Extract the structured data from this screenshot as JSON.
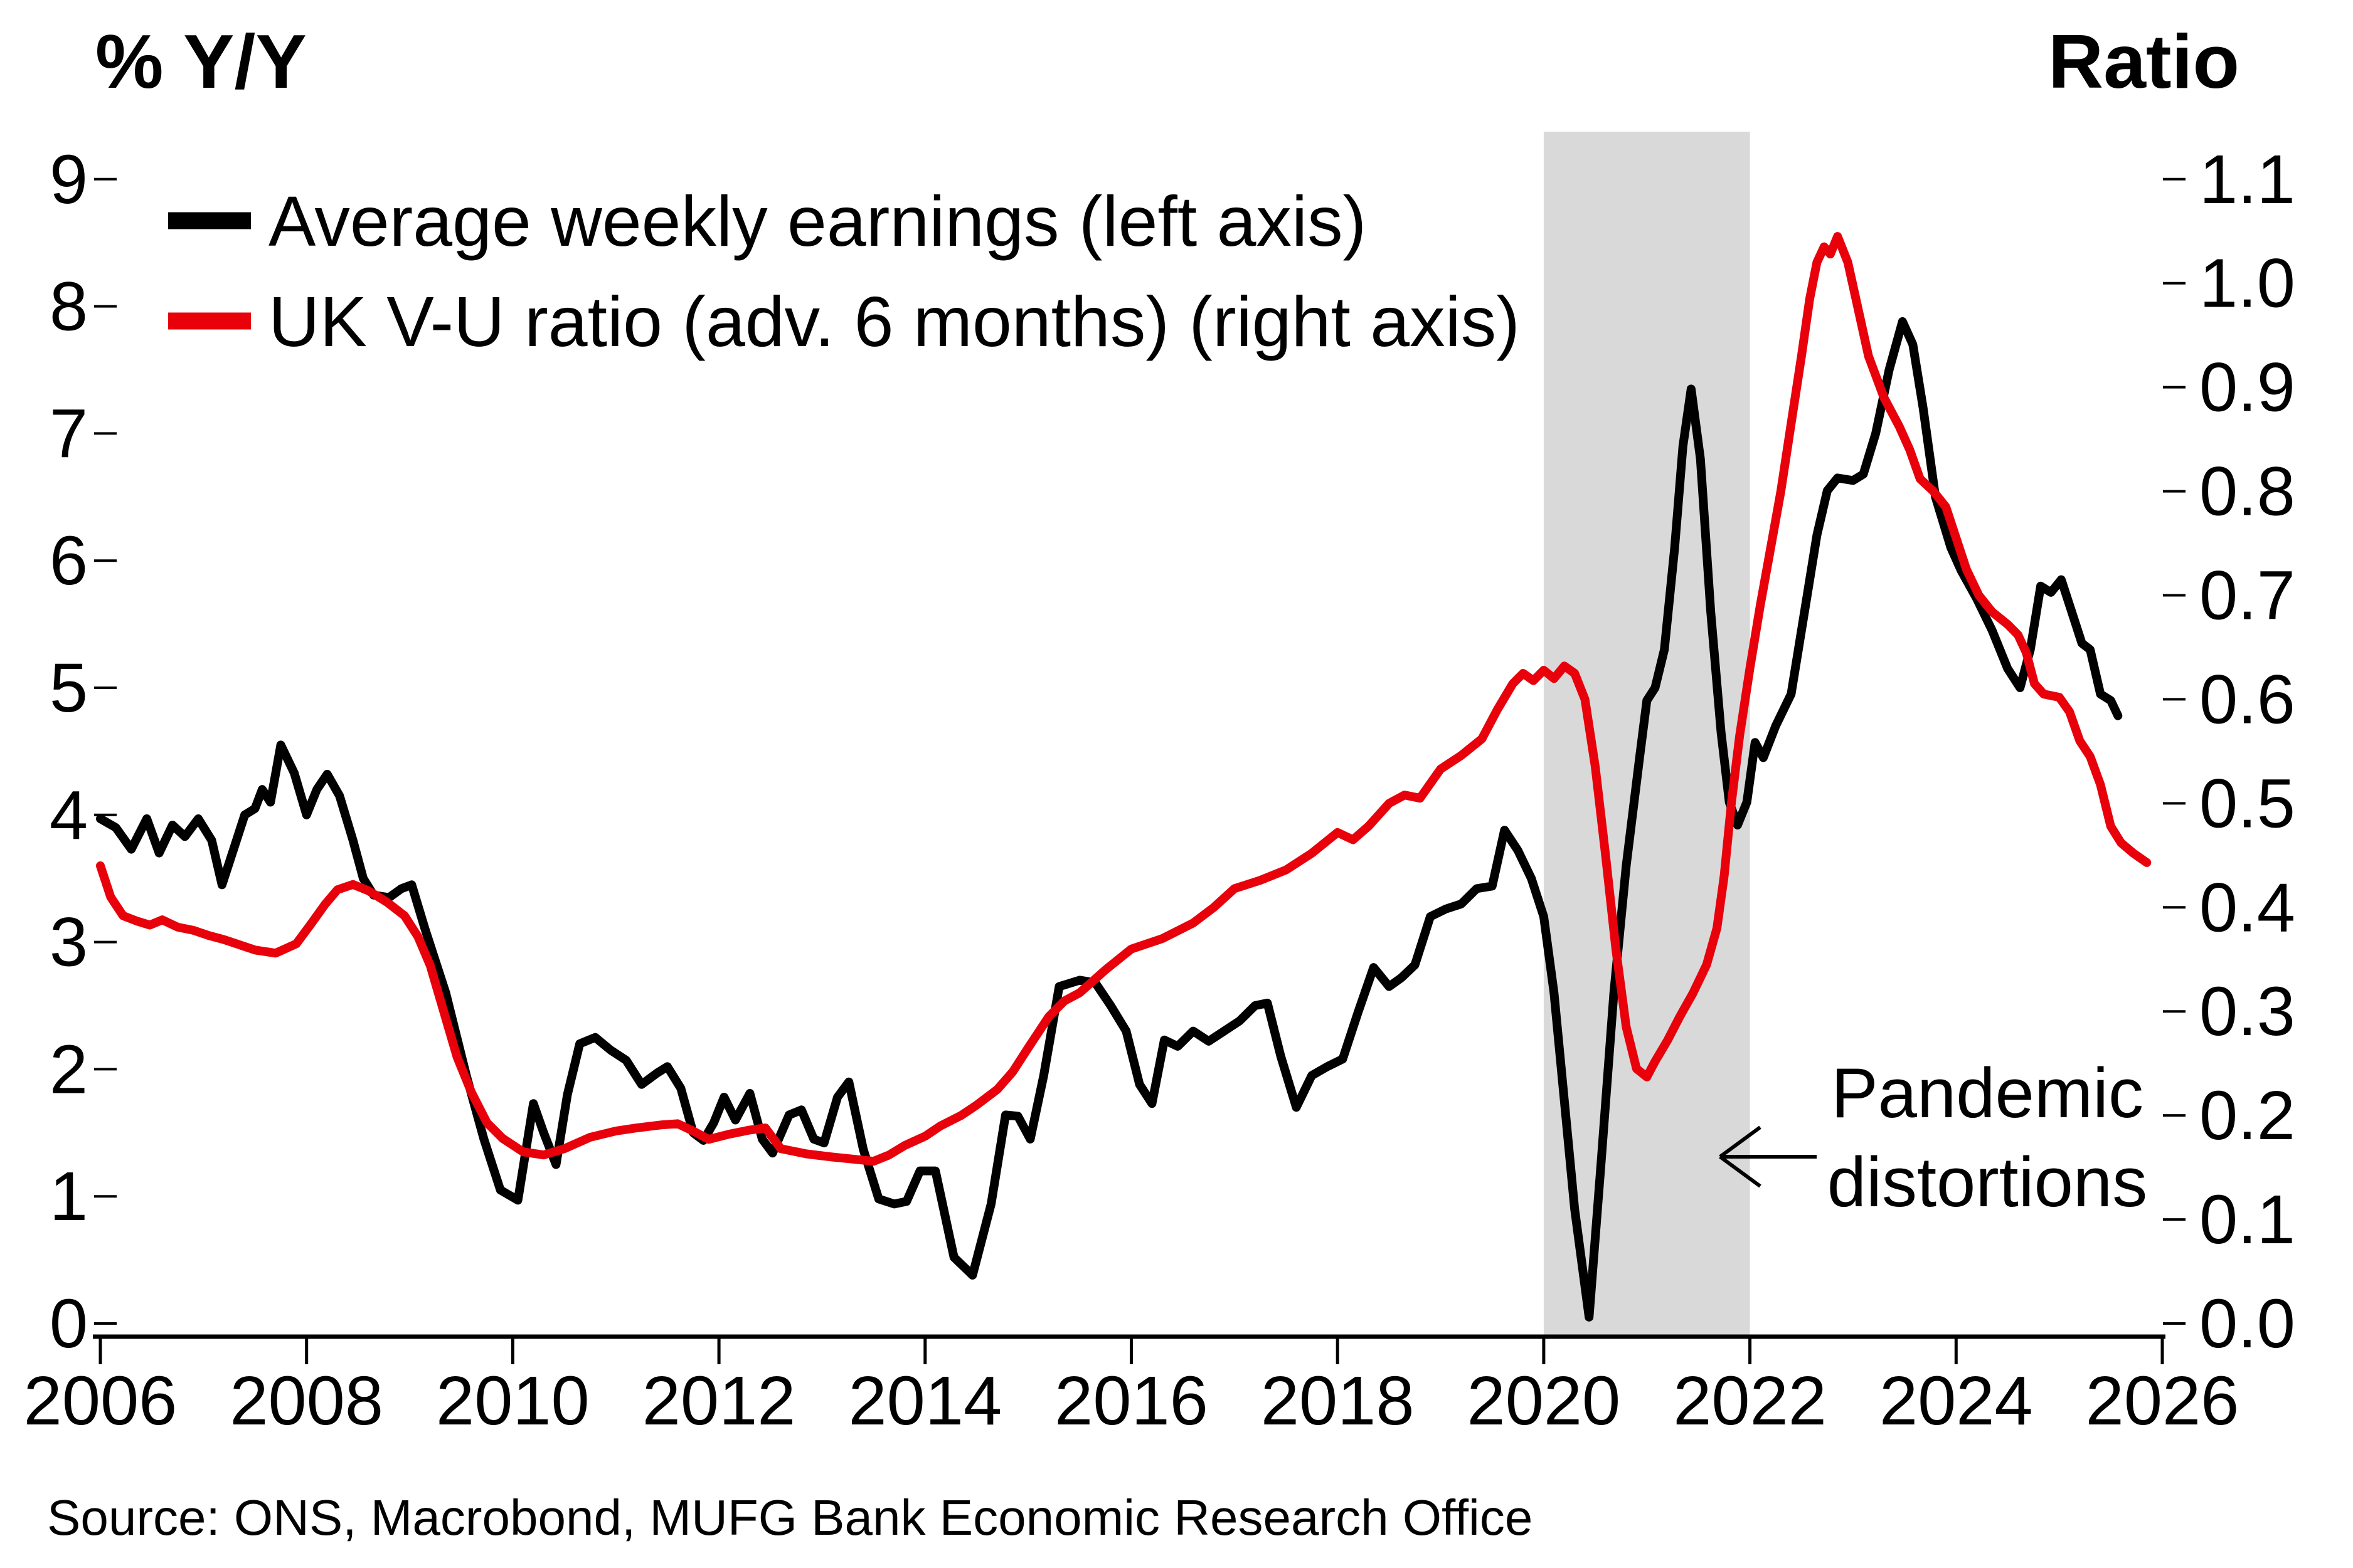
{
  "chart_data": {
    "type": "line",
    "title": "",
    "ylabel_left": "% Y/Y",
    "ylabel_right": "Ratio",
    "source": "Source: ONS, Macrobond, MUFG Bank Economic Research Office",
    "xlim": [
      2005.93,
      2026.05
    ],
    "ylim_left": [
      -0.1,
      9.37
    ],
    "ylim_right": [
      -0.012,
      1.146
    ],
    "grid": false,
    "legend_position": "top-left",
    "xticks": [
      "2006",
      "2008",
      "2010",
      "2012",
      "2014",
      "2016",
      "2018",
      "2020",
      "2022",
      "2024",
      "2026"
    ],
    "yticks_left": [
      "0",
      "1",
      "2",
      "3",
      "4",
      "5",
      "6",
      "7",
      "8",
      "9"
    ],
    "yticks_right": [
      "0.0",
      "0.1",
      "0.2",
      "0.3",
      "0.4",
      "0.5",
      "0.6",
      "0.7",
      "0.8",
      "0.9",
      "1.0",
      "1.1"
    ],
    "shaded_band": {
      "x_start": 2020,
      "x_end": 2022,
      "color": "#d9d9d9"
    },
    "annotation": {
      "line1": "Pandemic",
      "line2": "distortions"
    },
    "series": [
      {
        "name": "Average weekly earnings (left axis)",
        "color": "#000000",
        "axis": "left",
        "data": [
          [
            2006.0,
            3.97
          ],
          [
            2006.15,
            3.9
          ],
          [
            2006.3,
            3.73
          ],
          [
            2006.45,
            3.97
          ],
          [
            2006.57,
            3.7
          ],
          [
            2006.7,
            3.92
          ],
          [
            2006.82,
            3.83
          ],
          [
            2006.95,
            3.97
          ],
          [
            2007.08,
            3.8
          ],
          [
            2007.18,
            3.45
          ],
          [
            2007.3,
            3.75
          ],
          [
            2007.4,
            4.0
          ],
          [
            2007.5,
            4.05
          ],
          [
            2007.57,
            4.2
          ],
          [
            2007.65,
            4.1
          ],
          [
            2007.75,
            4.55
          ],
          [
            2007.88,
            4.33
          ],
          [
            2008.0,
            4.0
          ],
          [
            2008.1,
            4.2
          ],
          [
            2008.2,
            4.32
          ],
          [
            2008.32,
            4.15
          ],
          [
            2008.45,
            3.8
          ],
          [
            2008.55,
            3.5
          ],
          [
            2008.65,
            3.37
          ],
          [
            2008.8,
            3.35
          ],
          [
            2008.92,
            3.42
          ],
          [
            2009.02,
            3.45
          ],
          [
            2009.15,
            3.1
          ],
          [
            2009.35,
            2.6
          ],
          [
            2009.55,
            1.95
          ],
          [
            2009.72,
            1.45
          ],
          [
            2009.88,
            1.05
          ],
          [
            2010.05,
            0.97
          ],
          [
            2010.2,
            1.73
          ],
          [
            2010.3,
            1.5
          ],
          [
            2010.42,
            1.25
          ],
          [
            2010.53,
            1.8
          ],
          [
            2010.65,
            2.2
          ],
          [
            2010.8,
            2.25
          ],
          [
            2010.95,
            2.15
          ],
          [
            2011.1,
            2.07
          ],
          [
            2011.25,
            1.88
          ],
          [
            2011.4,
            1.97
          ],
          [
            2011.5,
            2.02
          ],
          [
            2011.63,
            1.85
          ],
          [
            2011.75,
            1.5
          ],
          [
            2011.85,
            1.44
          ],
          [
            2011.95,
            1.58
          ],
          [
            2012.05,
            1.78
          ],
          [
            2012.16,
            1.6
          ],
          [
            2012.3,
            1.81
          ],
          [
            2012.42,
            1.45
          ],
          [
            2012.52,
            1.34
          ],
          [
            2012.68,
            1.64
          ],
          [
            2012.8,
            1.68
          ],
          [
            2012.92,
            1.45
          ],
          [
            2013.02,
            1.42
          ],
          [
            2013.15,
            1.78
          ],
          [
            2013.26,
            1.9
          ],
          [
            2013.4,
            1.37
          ],
          [
            2013.55,
            0.98
          ],
          [
            2013.7,
            0.94
          ],
          [
            2013.82,
            0.96
          ],
          [
            2013.95,
            1.2
          ],
          [
            2014.1,
            1.2
          ],
          [
            2014.28,
            0.52
          ],
          [
            2014.46,
            0.38
          ],
          [
            2014.64,
            0.94
          ],
          [
            2014.78,
            1.64
          ],
          [
            2014.9,
            1.63
          ],
          [
            2015.02,
            1.45
          ],
          [
            2015.15,
            1.95
          ],
          [
            2015.3,
            2.65
          ],
          [
            2015.5,
            2.7
          ],
          [
            2015.65,
            2.68
          ],
          [
            2015.8,
            2.5
          ],
          [
            2015.95,
            2.3
          ],
          [
            2016.08,
            1.88
          ],
          [
            2016.2,
            1.73
          ],
          [
            2016.32,
            2.23
          ],
          [
            2016.45,
            2.18
          ],
          [
            2016.6,
            2.3
          ],
          [
            2016.75,
            2.22
          ],
          [
            2016.9,
            2.3
          ],
          [
            2017.05,
            2.38
          ],
          [
            2017.2,
            2.5
          ],
          [
            2017.32,
            2.52
          ],
          [
            2017.45,
            2.1
          ],
          [
            2017.6,
            1.7
          ],
          [
            2017.75,
            1.95
          ],
          [
            2017.9,
            2.02
          ],
          [
            2018.05,
            2.08
          ],
          [
            2018.2,
            2.45
          ],
          [
            2018.35,
            2.8
          ],
          [
            2018.5,
            2.65
          ],
          [
            2018.62,
            2.72
          ],
          [
            2018.75,
            2.82
          ],
          [
            2018.9,
            3.2
          ],
          [
            2019.05,
            3.26
          ],
          [
            2019.2,
            3.3
          ],
          [
            2019.35,
            3.42
          ],
          [
            2019.5,
            3.44
          ],
          [
            2019.62,
            3.88
          ],
          [
            2019.75,
            3.72
          ],
          [
            2019.88,
            3.5
          ],
          [
            2020.0,
            3.2
          ],
          [
            2020.1,
            2.6
          ],
          [
            2020.2,
            1.75
          ],
          [
            2020.3,
            0.9
          ],
          [
            2020.44,
            0.05
          ],
          [
            2020.56,
            1.3
          ],
          [
            2020.68,
            2.6
          ],
          [
            2020.8,
            3.6
          ],
          [
            2020.93,
            4.45
          ],
          [
            2021.0,
            4.9
          ],
          [
            2021.08,
            5.0
          ],
          [
            2021.17,
            5.3
          ],
          [
            2021.27,
            6.1
          ],
          [
            2021.35,
            6.9
          ],
          [
            2021.43,
            7.35
          ],
          [
            2021.52,
            6.8
          ],
          [
            2021.62,
            5.6
          ],
          [
            2021.72,
            4.65
          ],
          [
            2021.8,
            4.1
          ],
          [
            2021.88,
            3.92
          ],
          [
            2021.97,
            4.1
          ],
          [
            2022.05,
            4.57
          ],
          [
            2022.13,
            4.45
          ],
          [
            2022.25,
            4.7
          ],
          [
            2022.4,
            4.95
          ],
          [
            2022.55,
            5.7
          ],
          [
            2022.65,
            6.2
          ],
          [
            2022.75,
            6.55
          ],
          [
            2022.85,
            6.65
          ],
          [
            2023.0,
            6.63
          ],
          [
            2023.1,
            6.68
          ],
          [
            2023.22,
            7.0
          ],
          [
            2023.35,
            7.5
          ],
          [
            2023.48,
            7.88
          ],
          [
            2023.58,
            7.7
          ],
          [
            2023.68,
            7.2
          ],
          [
            2023.8,
            6.5
          ],
          [
            2023.95,
            6.1
          ],
          [
            2024.05,
            5.92
          ],
          [
            2024.2,
            5.7
          ],
          [
            2024.35,
            5.45
          ],
          [
            2024.5,
            5.15
          ],
          [
            2024.62,
            5.0
          ],
          [
            2024.72,
            5.3
          ],
          [
            2024.82,
            5.8
          ],
          [
            2024.92,
            5.75
          ],
          [
            2025.02,
            5.85
          ],
          [
            2025.12,
            5.6
          ],
          [
            2025.22,
            5.35
          ],
          [
            2025.3,
            5.3
          ],
          [
            2025.4,
            4.95
          ],
          [
            2025.5,
            4.9
          ],
          [
            2025.57,
            4.78
          ]
        ]
      },
      {
        "name": "UK V-U ratio (adv. 6 months) (right axis)",
        "color": "#e8000b",
        "axis": "right",
        "data": [
          [
            2006.0,
            0.44
          ],
          [
            2006.1,
            0.41
          ],
          [
            2006.22,
            0.392
          ],
          [
            2006.35,
            0.387
          ],
          [
            2006.48,
            0.383
          ],
          [
            2006.6,
            0.388
          ],
          [
            2006.75,
            0.381
          ],
          [
            2006.9,
            0.378
          ],
          [
            2007.05,
            0.373
          ],
          [
            2007.2,
            0.369
          ],
          [
            2007.35,
            0.364
          ],
          [
            2007.5,
            0.359
          ],
          [
            2007.7,
            0.356
          ],
          [
            2007.9,
            0.365
          ],
          [
            2008.05,
            0.385
          ],
          [
            2008.18,
            0.403
          ],
          [
            2008.3,
            0.417
          ],
          [
            2008.45,
            0.422
          ],
          [
            2008.6,
            0.416
          ],
          [
            2008.78,
            0.405
          ],
          [
            2008.95,
            0.392
          ],
          [
            2009.08,
            0.372
          ],
          [
            2009.2,
            0.344
          ],
          [
            2009.33,
            0.3
          ],
          [
            2009.46,
            0.256
          ],
          [
            2009.6,
            0.222
          ],
          [
            2009.75,
            0.193
          ],
          [
            2009.9,
            0.178
          ],
          [
            2010.1,
            0.165
          ],
          [
            2010.3,
            0.162
          ],
          [
            2010.5,
            0.168
          ],
          [
            2010.75,
            0.179
          ],
          [
            2011.0,
            0.185
          ],
          [
            2011.2,
            0.188
          ],
          [
            2011.45,
            0.191
          ],
          [
            2011.6,
            0.192
          ],
          [
            2011.75,
            0.185
          ],
          [
            2011.9,
            0.177
          ],
          [
            2012.1,
            0.182
          ],
          [
            2012.3,
            0.186
          ],
          [
            2012.45,
            0.188
          ],
          [
            2012.6,
            0.168
          ],
          [
            2012.85,
            0.163
          ],
          [
            2013.1,
            0.16
          ],
          [
            2013.3,
            0.158
          ],
          [
            2013.5,
            0.156
          ],
          [
            2013.65,
            0.162
          ],
          [
            2013.8,
            0.171
          ],
          [
            2014.0,
            0.18
          ],
          [
            2014.15,
            0.19
          ],
          [
            2014.35,
            0.2
          ],
          [
            2014.5,
            0.21
          ],
          [
            2014.7,
            0.225
          ],
          [
            2014.85,
            0.242
          ],
          [
            2015.0,
            0.265
          ],
          [
            2015.2,
            0.295
          ],
          [
            2015.35,
            0.31
          ],
          [
            2015.5,
            0.318
          ],
          [
            2015.75,
            0.34
          ],
          [
            2016.0,
            0.36
          ],
          [
            2016.3,
            0.37
          ],
          [
            2016.6,
            0.385
          ],
          [
            2016.8,
            0.4
          ],
          [
            2017.0,
            0.418
          ],
          [
            2017.25,
            0.426
          ],
          [
            2017.5,
            0.436
          ],
          [
            2017.75,
            0.452
          ],
          [
            2018.0,
            0.472
          ],
          [
            2018.15,
            0.465
          ],
          [
            2018.3,
            0.478
          ],
          [
            2018.5,
            0.5
          ],
          [
            2018.65,
            0.508
          ],
          [
            2018.8,
            0.505
          ],
          [
            2019.0,
            0.533
          ],
          [
            2019.2,
            0.546
          ],
          [
            2019.4,
            0.562
          ],
          [
            2019.55,
            0.59
          ],
          [
            2019.7,
            0.615
          ],
          [
            2019.8,
            0.625
          ],
          [
            2019.9,
            0.618
          ],
          [
            2020.0,
            0.628
          ],
          [
            2020.1,
            0.62
          ],
          [
            2020.2,
            0.632
          ],
          [
            2020.3,
            0.625
          ],
          [
            2020.4,
            0.6
          ],
          [
            2020.5,
            0.535
          ],
          [
            2020.6,
            0.45
          ],
          [
            2020.7,
            0.36
          ],
          [
            2020.8,
            0.285
          ],
          [
            2020.9,
            0.245
          ],
          [
            2021.0,
            0.237
          ],
          [
            2021.08,
            0.252
          ],
          [
            2021.2,
            0.272
          ],
          [
            2021.32,
            0.295
          ],
          [
            2021.45,
            0.318
          ],
          [
            2021.58,
            0.345
          ],
          [
            2021.68,
            0.38
          ],
          [
            2021.75,
            0.43
          ],
          [
            2021.82,
            0.5
          ],
          [
            2021.9,
            0.565
          ],
          [
            2022.0,
            0.63
          ],
          [
            2022.1,
            0.69
          ],
          [
            2022.2,
            0.745
          ],
          [
            2022.3,
            0.8
          ],
          [
            2022.4,
            0.865
          ],
          [
            2022.5,
            0.93
          ],
          [
            2022.58,
            0.985
          ],
          [
            2022.65,
            1.02
          ],
          [
            2022.72,
            1.035
          ],
          [
            2022.78,
            1.028
          ],
          [
            2022.85,
            1.045
          ],
          [
            2022.95,
            1.02
          ],
          [
            2023.05,
            0.975
          ],
          [
            2023.15,
            0.93
          ],
          [
            2023.3,
            0.89
          ],
          [
            2023.45,
            0.862
          ],
          [
            2023.55,
            0.84
          ],
          [
            2023.65,
            0.812
          ],
          [
            2023.78,
            0.8
          ],
          [
            2023.9,
            0.785
          ],
          [
            2024.0,
            0.755
          ],
          [
            2024.1,
            0.725
          ],
          [
            2024.22,
            0.7
          ],
          [
            2024.35,
            0.684
          ],
          [
            2024.5,
            0.672
          ],
          [
            2024.6,
            0.662
          ],
          [
            2024.68,
            0.645
          ],
          [
            2024.76,
            0.615
          ],
          [
            2024.85,
            0.605
          ],
          [
            2025.0,
            0.602
          ],
          [
            2025.1,
            0.588
          ],
          [
            2025.2,
            0.56
          ],
          [
            2025.3,
            0.545
          ],
          [
            2025.4,
            0.518
          ],
          [
            2025.5,
            0.478
          ],
          [
            2025.6,
            0.462
          ],
          [
            2025.72,
            0.452
          ],
          [
            2025.85,
            0.443
          ]
        ]
      }
    ]
  }
}
